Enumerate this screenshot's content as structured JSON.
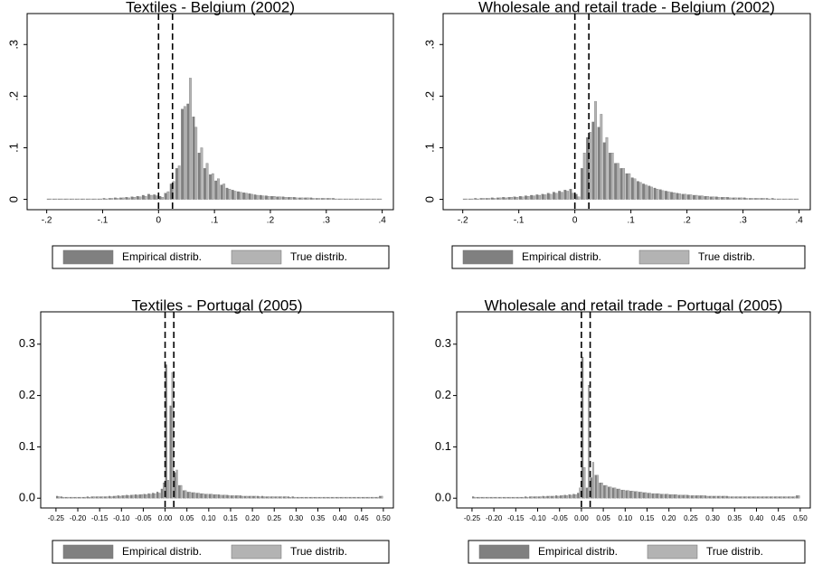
{
  "chart_data": [
    {
      "type": "histogram",
      "title": "Textiles - Belgium (2002)",
      "bins": [
        -0.2,
        -0.19,
        -0.18,
        -0.17,
        -0.16,
        -0.15,
        -0.14,
        -0.13,
        -0.12,
        -0.11,
        -0.1,
        -0.09,
        -0.08,
        -0.07,
        -0.06,
        -0.05,
        -0.04,
        -0.03,
        -0.02,
        -0.01,
        0,
        0.01,
        0.02,
        0.03,
        0.04,
        0.05,
        0.06,
        0.07,
        0.08,
        0.09,
        0.1,
        0.11,
        0.12,
        0.13,
        0.14,
        0.15,
        0.16,
        0.17,
        0.18,
        0.19,
        0.2,
        0.21,
        0.22,
        0.23,
        0.24,
        0.25,
        0.26,
        0.27,
        0.28,
        0.29,
        0.3,
        0.31,
        0.32,
        0.33,
        0.34,
        0.35,
        0.36,
        0.37,
        0.38,
        0.39,
        0.4
      ],
      "series": [
        {
          "name": "Empirical distrib.",
          "color": "#808080",
          "values": [
            0.001,
            0.001,
            0.001,
            0.001,
            0.001,
            0.001,
            0.001,
            0.001,
            0.001,
            0.001,
            0.002,
            0.002,
            0.003,
            0.003,
            0.004,
            0.005,
            0.006,
            0.008,
            0.01,
            0.009,
            0.006,
            0.012,
            0.03,
            0.06,
            0.175,
            0.185,
            0.16,
            0.09,
            0.06,
            0.048,
            0.036,
            0.028,
            0.022,
            0.018,
            0.015,
            0.013,
            0.011,
            0.009,
            0.008,
            0.007,
            0.006,
            0.005,
            0.005,
            0.004,
            0.004,
            0.003,
            0.003,
            0.003,
            0.002,
            0.002,
            0.002,
            0.002,
            0.001,
            0.001,
            0.001,
            0.001,
            0.001,
            0.001,
            0.001,
            0.001
          ]
        },
        {
          "name": "True distrib.",
          "color": "#b3b3b3",
          "values": [
            0.001,
            0.001,
            0.001,
            0.001,
            0.001,
            0.001,
            0.001,
            0.001,
            0.001,
            0.001,
            0.001,
            0.002,
            0.002,
            0.003,
            0.003,
            0.004,
            0.005,
            0.006,
            0.008,
            0.007,
            0.004,
            0.015,
            0.035,
            0.065,
            0.18,
            0.235,
            0.14,
            0.1,
            0.07,
            0.05,
            0.04,
            0.03,
            0.02,
            0.016,
            0.014,
            0.012,
            0.01,
            0.008,
            0.007,
            0.006,
            0.006,
            0.005,
            0.004,
            0.004,
            0.003,
            0.003,
            0.003,
            0.002,
            0.002,
            0.002,
            0.002,
            0.001,
            0.001,
            0.001,
            0.001,
            0.001,
            0.001,
            0.001,
            0.001,
            0.001
          ]
        }
      ],
      "vlines": [
        0,
        0.025
      ],
      "xlim": [
        -0.235,
        0.42
      ],
      "ylim": [
        -0.02,
        0.36
      ],
      "xticks": [
        {
          "value": -0.2,
          "label": "-.2"
        },
        {
          "value": -0.1,
          "label": "-.1"
        },
        0,
        {
          "value": 0.1,
          "label": ".1"
        },
        {
          "value": 0.2,
          "label": ".2"
        },
        {
          "value": 0.3,
          "label": ".3"
        },
        {
          "value": 0.4,
          "label": ".4"
        }
      ],
      "yticks": [
        0,
        {
          "value": 0.1,
          "label": ".1"
        },
        {
          "value": 0.2,
          "label": ".2"
        },
        {
          "value": 0.3,
          "label": ".3"
        }
      ]
    },
    {
      "type": "histogram",
      "title": "Wholesale and retail trade - Belgium (2002)",
      "bins": [
        -0.2,
        -0.19,
        -0.18,
        -0.17,
        -0.16,
        -0.15,
        -0.14,
        -0.13,
        -0.12,
        -0.11,
        -0.1,
        -0.09,
        -0.08,
        -0.07,
        -0.06,
        -0.05,
        -0.04,
        -0.03,
        -0.02,
        -0.01,
        0,
        0.01,
        0.02,
        0.03,
        0.04,
        0.05,
        0.06,
        0.07,
        0.08,
        0.09,
        0.1,
        0.11,
        0.12,
        0.13,
        0.14,
        0.15,
        0.16,
        0.17,
        0.18,
        0.19,
        0.2,
        0.21,
        0.22,
        0.23,
        0.24,
        0.25,
        0.26,
        0.27,
        0.28,
        0.29,
        0.3,
        0.31,
        0.32,
        0.33,
        0.34,
        0.35,
        0.36,
        0.37,
        0.38,
        0.39,
        0.4
      ],
      "series": [
        {
          "name": "Empirical distrib.",
          "color": "#808080",
          "values": [
            0.001,
            0.001,
            0.002,
            0.002,
            0.002,
            0.003,
            0.003,
            0.004,
            0.004,
            0.005,
            0.006,
            0.007,
            0.008,
            0.009,
            0.01,
            0.012,
            0.014,
            0.016,
            0.018,
            0.02,
            0.01,
            0.06,
            0.12,
            0.15,
            0.14,
            0.11,
            0.09,
            0.07,
            0.06,
            0.05,
            0.042,
            0.035,
            0.03,
            0.026,
            0.022,
            0.019,
            0.016,
            0.014,
            0.012,
            0.01,
            0.009,
            0.008,
            0.007,
            0.006,
            0.005,
            0.005,
            0.004,
            0.004,
            0.003,
            0.003,
            0.003,
            0.002,
            0.002,
            0.002,
            0.002,
            0.002,
            0.001,
            0.001,
            0.001,
            0.001
          ]
        },
        {
          "name": "True distrib.",
          "color": "#b3b3b3",
          "values": [
            0.001,
            0.001,
            0.001,
            0.002,
            0.002,
            0.002,
            0.003,
            0.003,
            0.004,
            0.004,
            0.005,
            0.006,
            0.007,
            0.008,
            0.009,
            0.01,
            0.012,
            0.014,
            0.016,
            0.012,
            0.005,
            0.09,
            0.13,
            0.19,
            0.165,
            0.12,
            0.09,
            0.07,
            0.06,
            0.05,
            0.04,
            0.033,
            0.028,
            0.024,
            0.02,
            0.017,
            0.015,
            0.013,
            0.011,
            0.01,
            0.009,
            0.008,
            0.007,
            0.006,
            0.005,
            0.004,
            0.004,
            0.003,
            0.003,
            0.003,
            0.002,
            0.002,
            0.002,
            0.002,
            0.001,
            0.001,
            0.001,
            0.001,
            0.001,
            0.001
          ]
        }
      ],
      "vlines": [
        0,
        0.025
      ],
      "xlim": [
        -0.235,
        0.42
      ],
      "ylim": [
        -0.02,
        0.36
      ],
      "xticks": [
        {
          "value": -0.2,
          "label": "-.2"
        },
        {
          "value": -0.1,
          "label": "-.1"
        },
        0,
        {
          "value": 0.1,
          "label": ".1"
        },
        {
          "value": 0.2,
          "label": ".2"
        },
        {
          "value": 0.3,
          "label": ".3"
        },
        {
          "value": 0.4,
          "label": ".4"
        }
      ],
      "yticks": [
        0,
        {
          "value": 0.1,
          "label": ".1"
        },
        {
          "value": 0.2,
          "label": ".2"
        },
        {
          "value": 0.3,
          "label": ".3"
        }
      ]
    },
    {
      "type": "histogram",
      "title": "Textiles - Portugal (2005)",
      "bins": [
        -0.25,
        -0.24,
        -0.23,
        -0.22,
        -0.21,
        -0.2,
        -0.19,
        -0.18,
        -0.17,
        -0.16,
        -0.15,
        -0.14,
        -0.13,
        -0.12,
        -0.11,
        -0.1,
        -0.09,
        -0.08,
        -0.07,
        -0.06,
        -0.05,
        -0.04,
        -0.03,
        -0.02,
        -0.01,
        0,
        0.01,
        0.02,
        0.03,
        0.04,
        0.05,
        0.06,
        0.07,
        0.08,
        0.09,
        0.1,
        0.11,
        0.12,
        0.13,
        0.14,
        0.15,
        0.16,
        0.17,
        0.18,
        0.19,
        0.2,
        0.21,
        0.22,
        0.23,
        0.24,
        0.25,
        0.26,
        0.27,
        0.28,
        0.29,
        0.3,
        0.31,
        0.32,
        0.33,
        0.34,
        0.35,
        0.36,
        0.37,
        0.38,
        0.39,
        0.4,
        0.41,
        0.42,
        0.43,
        0.44,
        0.45,
        0.46,
        0.47,
        0.48,
        0.49,
        0.5
      ],
      "series": [
        {
          "name": "Empirical distrib.",
          "color": "#808080",
          "values": [
            0.004,
            0.003,
            0.002,
            0.002,
            0.002,
            0.002,
            0.002,
            0.003,
            0.003,
            0.003,
            0.003,
            0.003,
            0.004,
            0.004,
            0.005,
            0.005,
            0.006,
            0.006,
            0.007,
            0.007,
            0.008,
            0.009,
            0.01,
            0.012,
            0.018,
            0.26,
            0.18,
            0.05,
            0.025,
            0.015,
            0.012,
            0.011,
            0.01,
            0.009,
            0.008,
            0.008,
            0.007,
            0.007,
            0.006,
            0.006,
            0.005,
            0.005,
            0.005,
            0.004,
            0.004,
            0.004,
            0.004,
            0.004,
            0.003,
            0.003,
            0.003,
            0.003,
            0.003,
            0.003,
            0.003,
            0.002,
            0.002,
            0.002,
            0.002,
            0.002,
            0.002,
            0.002,
            0.002,
            0.002,
            0.002,
            0.002,
            0.002,
            0.002,
            0.002,
            0.002,
            0.002,
            0.002,
            0.002,
            0.002,
            0.004
          ]
        },
        {
          "name": "True distrib.",
          "color": "#b3b3b3",
          "values": [
            0.003,
            0.002,
            0.002,
            0.002,
            0.002,
            0.002,
            0.002,
            0.002,
            0.003,
            0.003,
            0.003,
            0.003,
            0.003,
            0.004,
            0.004,
            0.005,
            0.005,
            0.006,
            0.006,
            0.007,
            0.007,
            0.008,
            0.009,
            0.01,
            0.03,
            0.035,
            0.245,
            0.055,
            0.025,
            0.015,
            0.012,
            0.011,
            0.01,
            0.009,
            0.008,
            0.008,
            0.007,
            0.006,
            0.006,
            0.005,
            0.005,
            0.005,
            0.004,
            0.004,
            0.004,
            0.004,
            0.003,
            0.003,
            0.003,
            0.003,
            0.003,
            0.003,
            0.003,
            0.002,
            0.002,
            0.002,
            0.002,
            0.002,
            0.002,
            0.002,
            0.002,
            0.002,
            0.002,
            0.002,
            0.002,
            0.002,
            0.002,
            0.002,
            0.002,
            0.002,
            0.002,
            0.002,
            0.002,
            0.002,
            0.004
          ]
        }
      ],
      "vlines": [
        0,
        0.02
      ],
      "xlim": [
        -0.285,
        0.523
      ],
      "ylim": [
        -0.019,
        0.363
      ],
      "xticks": [
        -0.25,
        {
          "value": -0.2,
          "label": "-0.20"
        },
        -0.15,
        {
          "value": -0.1,
          "label": "-0.10"
        },
        -0.05,
        {
          "value": 0,
          "label": "0.00"
        },
        0.05,
        {
          "value": 0.1,
          "label": "0.10"
        },
        0.15,
        {
          "value": 0.2,
          "label": "0.20"
        },
        0.25,
        {
          "value": 0.3,
          "label": "0.30"
        },
        0.35,
        {
          "value": 0.4,
          "label": "0.40"
        },
        0.45,
        {
          "value": 0.5,
          "label": "0.50"
        }
      ],
      "yticks": [
        {
          "value": 0,
          "label": "0.0"
        },
        0.1,
        0.2,
        0.3
      ]
    },
    {
      "type": "histogram",
      "title": "Wholesale and retail trade - Portugal (2005)",
      "bins": [
        -0.25,
        -0.24,
        -0.23,
        -0.22,
        -0.21,
        -0.2,
        -0.19,
        -0.18,
        -0.17,
        -0.16,
        -0.15,
        -0.14,
        -0.13,
        -0.12,
        -0.11,
        -0.1,
        -0.09,
        -0.08,
        -0.07,
        -0.06,
        -0.05,
        -0.04,
        -0.03,
        -0.02,
        -0.01,
        0,
        0.01,
        0.02,
        0.03,
        0.04,
        0.05,
        0.06,
        0.07,
        0.08,
        0.09,
        0.1,
        0.11,
        0.12,
        0.13,
        0.14,
        0.15,
        0.16,
        0.17,
        0.18,
        0.19,
        0.2,
        0.21,
        0.22,
        0.23,
        0.24,
        0.25,
        0.26,
        0.27,
        0.28,
        0.29,
        0.3,
        0.31,
        0.32,
        0.33,
        0.34,
        0.35,
        0.36,
        0.37,
        0.38,
        0.39,
        0.4,
        0.41,
        0.42,
        0.43,
        0.44,
        0.45,
        0.46,
        0.47,
        0.48,
        0.49,
        0.5
      ],
      "series": [
        {
          "name": "Empirical distrib.",
          "color": "#808080",
          "values": [
            0.003,
            0.002,
            0.002,
            0.002,
            0.002,
            0.002,
            0.002,
            0.002,
            0.002,
            0.002,
            0.002,
            0.002,
            0.003,
            0.003,
            0.003,
            0.003,
            0.004,
            0.004,
            0.004,
            0.005,
            0.005,
            0.006,
            0.007,
            0.008,
            0.01,
            0.275,
            0.02,
            0.04,
            0.045,
            0.03,
            0.025,
            0.022,
            0.02,
            0.018,
            0.016,
            0.015,
            0.014,
            0.013,
            0.012,
            0.011,
            0.01,
            0.009,
            0.009,
            0.008,
            0.008,
            0.007,
            0.007,
            0.006,
            0.006,
            0.006,
            0.005,
            0.005,
            0.005,
            0.005,
            0.004,
            0.004,
            0.004,
            0.004,
            0.004,
            0.003,
            0.003,
            0.003,
            0.003,
            0.003,
            0.003,
            0.003,
            0.003,
            0.003,
            0.003,
            0.003,
            0.003,
            0.003,
            0.003,
            0.003,
            0.005
          ]
        },
        {
          "name": "True distrib.",
          "color": "#b3b3b3",
          "values": [
            0.002,
            0.002,
            0.002,
            0.002,
            0.002,
            0.002,
            0.002,
            0.002,
            0.002,
            0.002,
            0.002,
            0.002,
            0.002,
            0.003,
            0.003,
            0.003,
            0.003,
            0.004,
            0.004,
            0.004,
            0.005,
            0.005,
            0.006,
            0.007,
            0.02,
            0.06,
            0.22,
            0.07,
            0.045,
            0.03,
            0.025,
            0.022,
            0.02,
            0.018,
            0.016,
            0.015,
            0.014,
            0.013,
            0.012,
            0.011,
            0.01,
            0.009,
            0.009,
            0.008,
            0.008,
            0.007,
            0.007,
            0.006,
            0.006,
            0.005,
            0.005,
            0.005,
            0.005,
            0.004,
            0.004,
            0.004,
            0.004,
            0.004,
            0.003,
            0.003,
            0.003,
            0.003,
            0.003,
            0.003,
            0.003,
            0.003,
            0.003,
            0.003,
            0.003,
            0.003,
            0.003,
            0.003,
            0.003,
            0.003,
            0.005
          ]
        }
      ],
      "vlines": [
        0,
        0.02
      ],
      "xlim": [
        -0.285,
        0.523
      ],
      "ylim": [
        -0.019,
        0.363
      ],
      "xticks": [
        -0.25,
        {
          "value": -0.2,
          "label": "-0.20"
        },
        -0.15,
        {
          "value": -0.1,
          "label": "-0.10"
        },
        -0.05,
        {
          "value": 0,
          "label": "0.00"
        },
        0.05,
        {
          "value": 0.1,
          "label": "0.10"
        },
        0.15,
        {
          "value": 0.2,
          "label": "0.20"
        },
        0.25,
        {
          "value": 0.3,
          "label": "0.30"
        },
        0.35,
        {
          "value": 0.4,
          "label": "0.40"
        },
        0.45,
        {
          "value": 0.5,
          "label": "0.50"
        }
      ],
      "yticks": [
        {
          "value": 0,
          "label": "0.0"
        },
        0.1,
        0.2,
        0.3
      ]
    }
  ]
}
